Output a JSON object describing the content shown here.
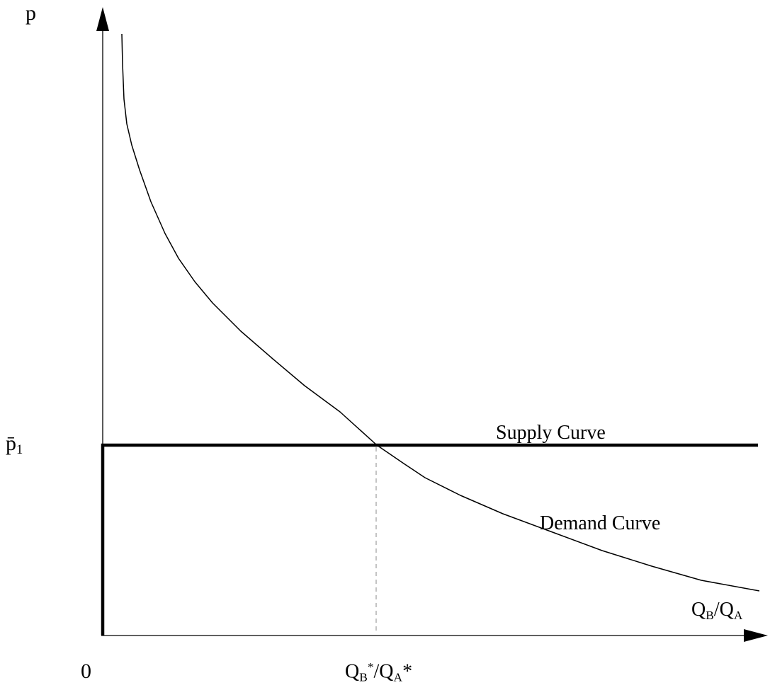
{
  "axes": {
    "y_label": "p",
    "origin_label": "0",
    "price_level_label": "p̄",
    "price_level_sub": "1",
    "x_label": {
      "q_b": "Q",
      "q_b_sub": "B",
      "slash": "/",
      "q_a": "Q",
      "q_a_sub": "A"
    },
    "equilibrium_label": {
      "q_b": "Q",
      "q_b_sub": "B",
      "q_b_sup": "*",
      "slash": "/",
      "q_a": "Q",
      "q_a_sub": "A",
      "q_a_sup": "*"
    }
  },
  "curves": {
    "supply_label": "Supply Curve",
    "demand_label": "Demand Curve"
  },
  "colors": {
    "ink": "#000000",
    "dashed": "#888888"
  }
}
